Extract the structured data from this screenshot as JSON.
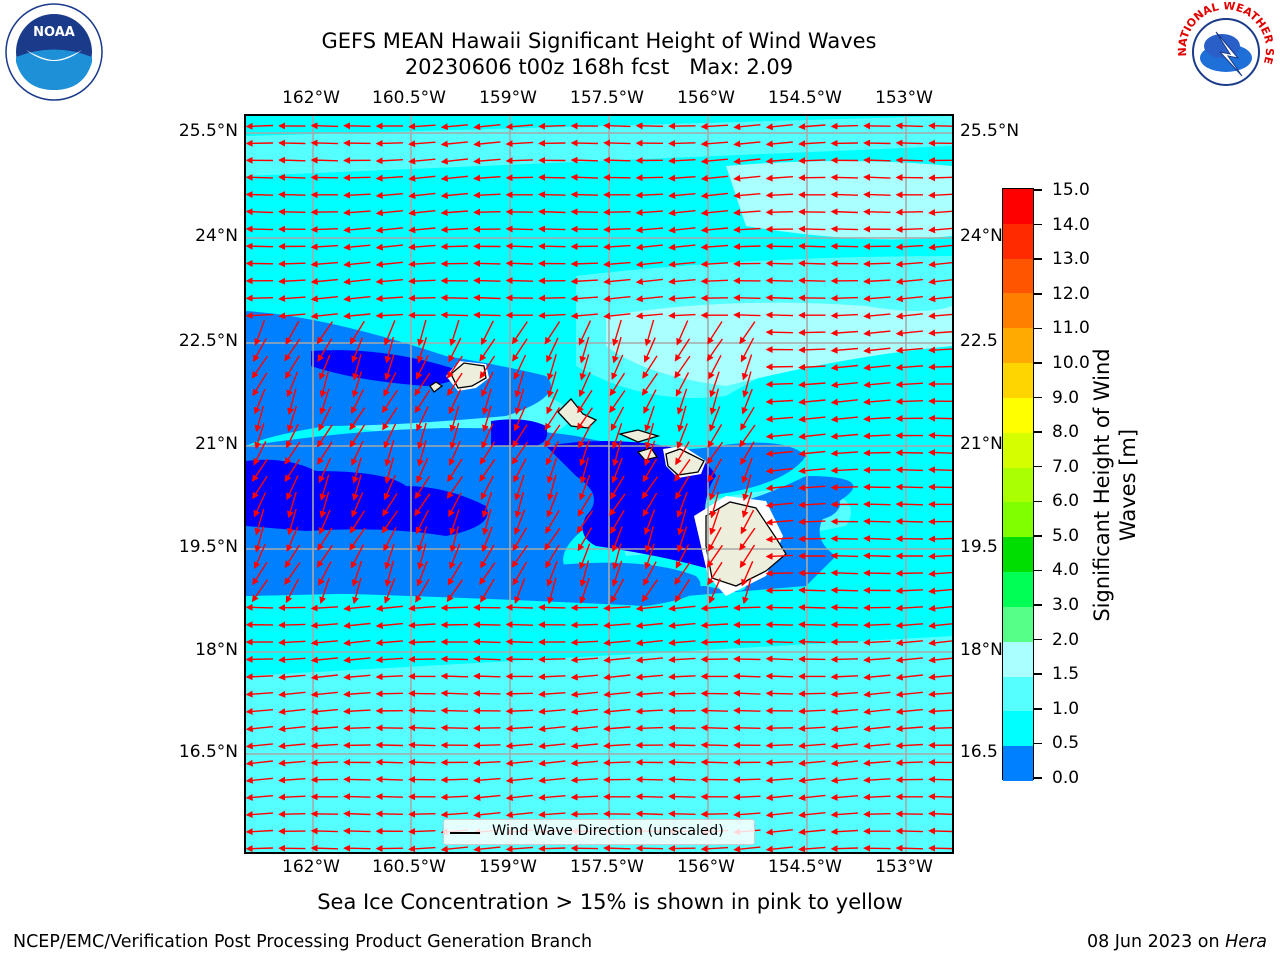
{
  "title_line1": "GEFS MEAN Hawaii Significant Height of Wind Waves",
  "title_line2": "20230606 t00z 168h fcst   Max: 2.09",
  "logos": {
    "left": "NOAA",
    "right": "NATIONAL WEATHER SERVICE"
  },
  "axes": {
    "lon_labels": [
      "162°W",
      "160.5°W",
      "159°W",
      "157.5°W",
      "156°W",
      "154.5°W",
      "153°W"
    ],
    "lat_labels": [
      "25.5°N",
      "24°N",
      "22.5°N",
      "21°N",
      "19.5°N",
      "18°N",
      "16.5°N"
    ],
    "lat_labels_right": [
      "25.5°N",
      "24°N",
      "22.5",
      "21°N",
      "19.5",
      "18°N",
      "16.5"
    ]
  },
  "colorbar": {
    "label": "Significant Height of Wind Waves [m]",
    "ticks": [
      "15.0",
      "14.0",
      "13.0",
      "12.0",
      "11.0",
      "10.0",
      "9.0",
      "8.0",
      "7.0",
      "6.0",
      "5.0",
      "4.0",
      "3.0",
      "2.0",
      "1.5",
      "1.0",
      "0.5",
      "0.0"
    ],
    "colors": [
      "#ff0000",
      "#ff2a00",
      "#ff5500",
      "#ff8000",
      "#ffaa00",
      "#ffd500",
      "#ffff00",
      "#d5ff00",
      "#aaff00",
      "#80ff00",
      "#00dd00",
      "#00ff55",
      "#55ff88",
      "#aaffff",
      "#55ffff",
      "#00ffff",
      "#0080ff",
      "#0000ff"
    ]
  },
  "legend": {
    "label": "Wind Wave Direction (unscaled)"
  },
  "subnote": "Sea Ice Concentration > 15% is shown in pink to yellow",
  "footer_left": "NCEP/EMC/Verification Post Processing Product Generation Branch",
  "footer_right_prefix": "08 Jun 2023 on ",
  "footer_right_host": "Hera"
}
